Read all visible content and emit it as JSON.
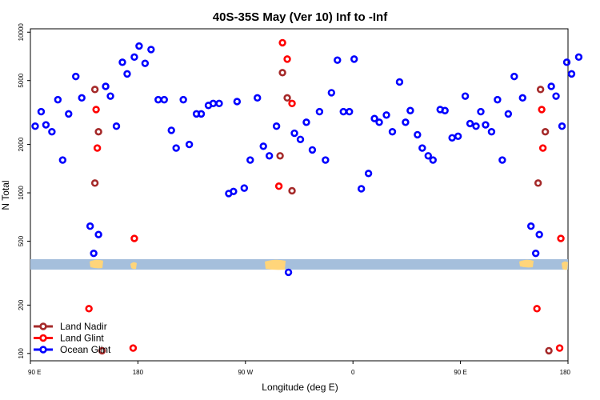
{
  "chart_data": {
    "type": "scatter",
    "title": "40S-35S May (Ver 10)   Inf to -Inf",
    "xlabel": "Longitude (deg E)",
    "ylabel": "N Total",
    "y_scale": "log",
    "xlim": [
      90,
      540
    ],
    "ylim": [
      90,
      10500
    ],
    "x_ticks": [
      {
        "value": 90,
        "label": "90 E"
      },
      {
        "value": 180,
        "label": "180"
      },
      {
        "value": 270,
        "label": "90 W"
      },
      {
        "value": 360,
        "label": "0"
      },
      {
        "value": 450,
        "label": "90 E"
      },
      {
        "value": 540,
        "label": "180"
      }
    ],
    "y_ticks": [
      {
        "value": 100,
        "label": "100"
      },
      {
        "value": 200,
        "label": "200"
      },
      {
        "value": 500,
        "label": "500"
      },
      {
        "value": 1000,
        "label": "1000"
      },
      {
        "value": 2000,
        "label": "2000"
      },
      {
        "value": 5000,
        "label": "5000"
      },
      {
        "value": 10000,
        "label": "10000"
      }
    ],
    "grid": false,
    "legend_position": "bottom-left",
    "map_strip": {
      "land_color": "#ffd57a",
      "ocean_color": "#a5bfdc"
    },
    "series": [
      {
        "name": "Land Nadir",
        "color": "#a52a2a",
        "points": [
          [
            144,
            4400
          ],
          [
            147,
            2400
          ],
          [
            144,
            1150
          ],
          [
            150,
            104
          ],
          [
            301,
            5600
          ],
          [
            305,
            3900
          ],
          [
            309,
            1030
          ],
          [
            299,
            1700
          ],
          [
            517,
            4400
          ],
          [
            521,
            2400
          ],
          [
            515,
            1150
          ],
          [
            524,
            104
          ]
        ]
      },
      {
        "name": "Land Glint",
        "color": "#ff0000",
        "points": [
          [
            145,
            3300
          ],
          [
            146,
            1900
          ],
          [
            139,
            190
          ],
          [
            177,
            520
          ],
          [
            176,
            108
          ],
          [
            301,
            8600
          ],
          [
            305,
            6800
          ],
          [
            309,
            3600
          ],
          [
            298,
            1100
          ],
          [
            518,
            3300
          ],
          [
            519,
            1900
          ],
          [
            514,
            190
          ],
          [
            534,
            520
          ],
          [
            533,
            108
          ]
        ]
      },
      {
        "name": "Ocean Glint",
        "color": "#0000ff",
        "points": [
          [
            94,
            2600
          ],
          [
            99,
            3200
          ],
          [
            103,
            2650
          ],
          [
            108,
            2400
          ],
          [
            113,
            3800
          ],
          [
            117,
            1600
          ],
          [
            122,
            3100
          ],
          [
            128,
            5300
          ],
          [
            133,
            3900
          ],
          [
            140,
            620
          ],
          [
            143,
            420
          ],
          [
            147,
            550
          ],
          [
            153,
            4600
          ],
          [
            157,
            4000
          ],
          [
            162,
            2600
          ],
          [
            167,
            6500
          ],
          [
            171,
            5500
          ],
          [
            177,
            7000
          ],
          [
            181,
            8200
          ],
          [
            186,
            6400
          ],
          [
            191,
            7800
          ],
          [
            197,
            3800
          ],
          [
            202,
            3800
          ],
          [
            208,
            2450
          ],
          [
            212,
            1900
          ],
          [
            218,
            3800
          ],
          [
            223,
            2000
          ],
          [
            229,
            3100
          ],
          [
            233,
            3100
          ],
          [
            239,
            3500
          ],
          [
            243,
            3600
          ],
          [
            248,
            3600
          ],
          [
            256,
            990
          ],
          [
            260,
            1020
          ],
          [
            263,
            3700
          ],
          [
            269,
            1070
          ],
          [
            274,
            1600
          ],
          [
            280,
            3900
          ],
          [
            285,
            1950
          ],
          [
            290,
            1700
          ],
          [
            296,
            2600
          ],
          [
            306,
            320
          ],
          [
            311,
            2350
          ],
          [
            316,
            2150
          ],
          [
            321,
            2750
          ],
          [
            326,
            1850
          ],
          [
            332,
            3200
          ],
          [
            337,
            1600
          ],
          [
            342,
            4200
          ],
          [
            347,
            6700
          ],
          [
            352,
            3200
          ],
          [
            357,
            3200
          ],
          [
            361,
            6800
          ],
          [
            367,
            1060
          ],
          [
            373,
            1320
          ],
          [
            378,
            2900
          ],
          [
            382,
            2750
          ],
          [
            388,
            3050
          ],
          [
            393,
            2400
          ],
          [
            399,
            4900
          ],
          [
            404,
            2750
          ],
          [
            408,
            3250
          ],
          [
            414,
            2300
          ],
          [
            418,
            1900
          ],
          [
            423,
            1700
          ],
          [
            427,
            1600
          ],
          [
            433,
            3300
          ],
          [
            437,
            3250
          ],
          [
            443,
            2200
          ],
          [
            448,
            2250
          ],
          [
            454,
            4000
          ],
          [
            458,
            2700
          ],
          [
            463,
            2600
          ],
          [
            467,
            3200
          ],
          [
            471,
            2650
          ],
          [
            476,
            2400
          ],
          [
            481,
            3800
          ],
          [
            485,
            1600
          ],
          [
            490,
            3100
          ],
          [
            495,
            5300
          ],
          [
            502,
            3900
          ],
          [
            509,
            620
          ],
          [
            513,
            420
          ],
          [
            516,
            550
          ],
          [
            526,
            4600
          ],
          [
            530,
            4000
          ],
          [
            535,
            2600
          ],
          [
            539,
            6500
          ],
          [
            543,
            5500
          ],
          [
            549,
            7000
          ]
        ]
      }
    ]
  }
}
